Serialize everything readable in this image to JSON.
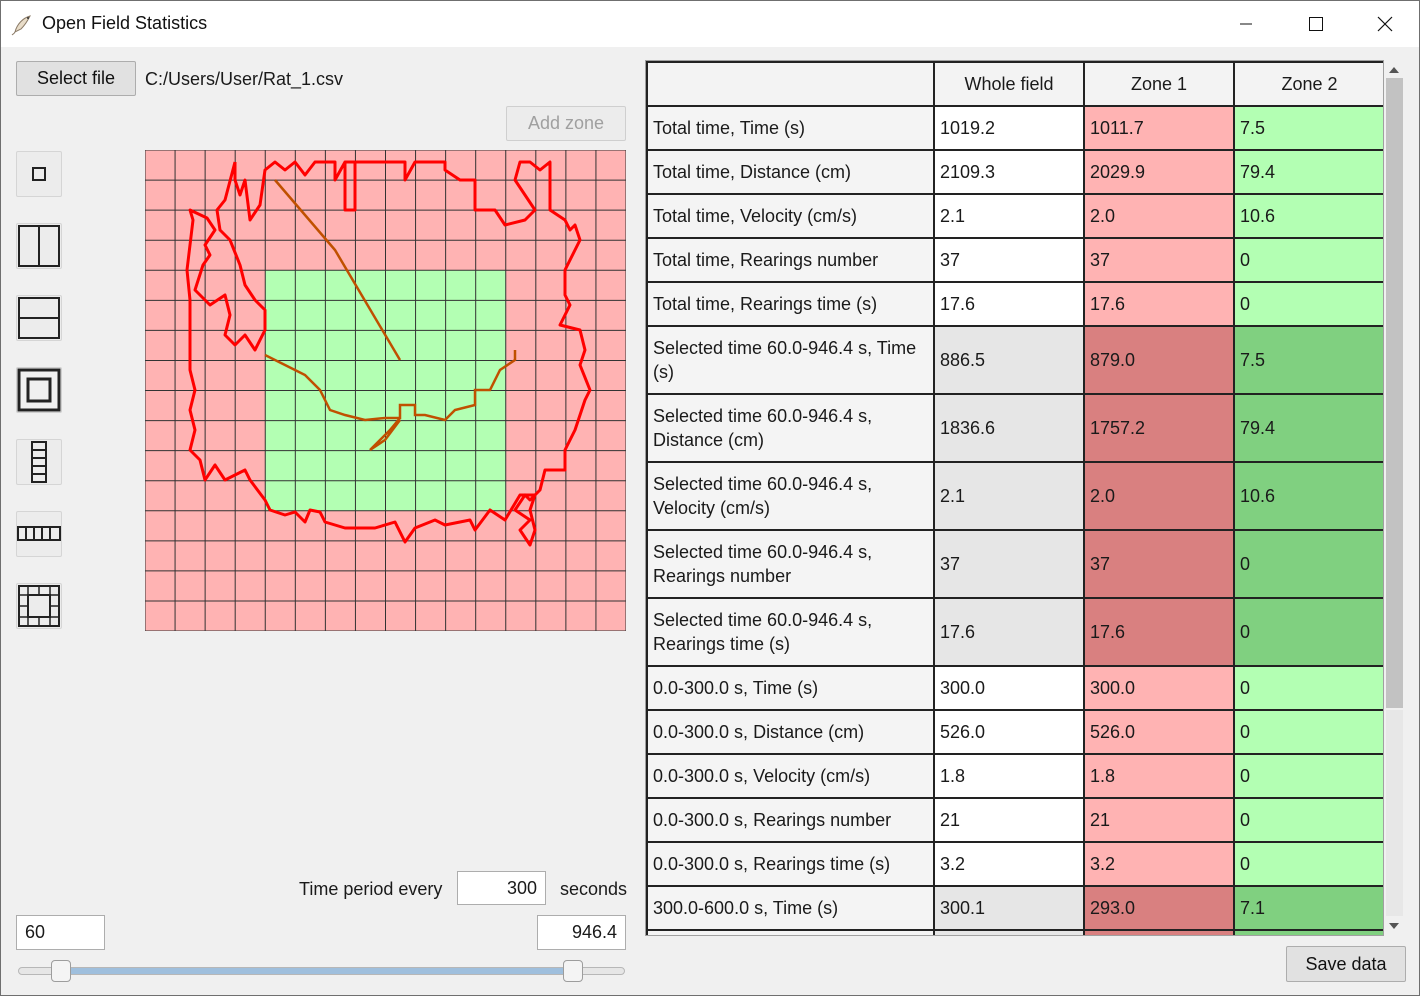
{
  "window": {
    "title": "Open Field Statistics",
    "controls": {
      "minimize": "minimize",
      "maximize": "maximize",
      "close": "close"
    }
  },
  "file": {
    "select_label": "Select file",
    "path": "C:/Users/User/Rat_1.csv"
  },
  "zone": {
    "add_label": "Add zone"
  },
  "tools": [
    {
      "name": "zone-small-square-icon"
    },
    {
      "name": "zone-vertical-split-icon"
    },
    {
      "name": "zone-horizontal-split-icon"
    },
    {
      "name": "zone-center-square-icon"
    },
    {
      "name": "zone-vertical-strip-icon"
    },
    {
      "name": "zone-horizontal-strip-icon"
    },
    {
      "name": "zone-border-grid-icon"
    }
  ],
  "time": {
    "period_label": "Time period every",
    "period_value": "300",
    "seconds_label": "seconds",
    "start": "60",
    "end": "946.4",
    "slider_range": [
      60,
      946.4
    ]
  },
  "colors": {
    "zone1": "#ffb3b3",
    "zone1_selected": "#d98080",
    "zone2": "#b3ffb3",
    "zone2_selected": "#80d080",
    "selected_whole": "#e6e6e6",
    "track": "#ff0000",
    "track_inner": "#c05000",
    "grid": "#333333"
  },
  "table": {
    "headers": [
      "",
      "Whole field",
      "Zone 1",
      "Zone 2"
    ],
    "rows": [
      {
        "label": "Total time, Time (s)",
        "whole": "1019.2",
        "zone1": "1011.7",
        "zone2": "7.5",
        "selected": false
      },
      {
        "label": "Total time, Distance (cm)",
        "whole": "2109.3",
        "zone1": "2029.9",
        "zone2": "79.4",
        "selected": false
      },
      {
        "label": "Total time, Velocity (cm/s)",
        "whole": "2.1",
        "zone1": "2.0",
        "zone2": "10.6",
        "selected": false
      },
      {
        "label": "Total time, Rearings number",
        "whole": "37",
        "zone1": "37",
        "zone2": "0",
        "selected": false
      },
      {
        "label": "Total time, Rearings time (s)",
        "whole": "17.6",
        "zone1": "17.6",
        "zone2": "0",
        "selected": false
      },
      {
        "label": "Selected time 60.0-946.4 s, Time (s)",
        "whole": "886.5",
        "zone1": "879.0",
        "zone2": "7.5",
        "selected": true
      },
      {
        "label": "Selected time 60.0-946.4 s, Distance (cm)",
        "whole": "1836.6",
        "zone1": "1757.2",
        "zone2": "79.4",
        "selected": true
      },
      {
        "label": "Selected time 60.0-946.4 s, Velocity (cm/s)",
        "whole": "2.1",
        "zone1": "2.0",
        "zone2": "10.6",
        "selected": true
      },
      {
        "label": "Selected time 60.0-946.4 s, Rearings number",
        "whole": "37",
        "zone1": "37",
        "zone2": "0",
        "selected": true
      },
      {
        "label": "Selected time 60.0-946.4 s, Rearings time (s)",
        "whole": "17.6",
        "zone1": "17.6",
        "zone2": "0",
        "selected": true
      },
      {
        "label": "0.0-300.0 s, Time (s)",
        "whole": "300.0",
        "zone1": "300.0",
        "zone2": "0",
        "selected": false
      },
      {
        "label": "0.0-300.0 s, Distance (cm)",
        "whole": "526.0",
        "zone1": "526.0",
        "zone2": "0",
        "selected": false
      },
      {
        "label": "0.0-300.0 s, Velocity (cm/s)",
        "whole": "1.8",
        "zone1": "1.8",
        "zone2": "0",
        "selected": false
      },
      {
        "label": "0.0-300.0 s, Rearings number",
        "whole": "21",
        "zone1": "21",
        "zone2": "0",
        "selected": false
      },
      {
        "label": "0.0-300.0 s, Rearings time (s)",
        "whole": "3.2",
        "zone1": "3.2",
        "zone2": "0",
        "selected": false
      },
      {
        "label": "300.0-600.0 s, Time (s)",
        "whole": "300.1",
        "zone1": "293.0",
        "zone2": "7.1",
        "selected": true
      },
      {
        "label": "",
        "whole": "",
        "zone1": "",
        "zone2": "",
        "selected": true
      }
    ]
  },
  "save": {
    "label": "Save data"
  }
}
